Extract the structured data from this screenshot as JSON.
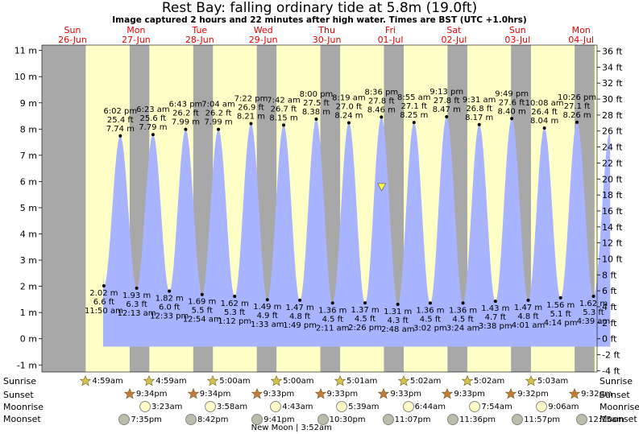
{
  "header": {
    "title": "Rest Bay: falling  ordinary tide at 5.8m (19.0ft)",
    "subtitle": "Image captured 2 hours and 22 minutes after high water. Times are BST (UTC +1.0hrs)"
  },
  "chart_data": {
    "type": "area",
    "title": "Rest Bay: falling  ordinary tide at 5.8m (19.0ft)",
    "ylabel_left_unit": "m",
    "ylabel_right_unit": "ft",
    "ylim_m": [
      -1.2,
      11.3
    ],
    "left_ticks": [
      "-1 m",
      "0 m",
      "1 m",
      "2 m",
      "3 m",
      "4 m",
      "5 m",
      "6 m",
      "7 m",
      "8 m",
      "9 m",
      "10 m",
      "11 m"
    ],
    "right_ticks": [
      "-4 ft",
      "-2 ft",
      "0 ft",
      "2 ft",
      "4 ft",
      "6 ft",
      "8 ft",
      "10 ft",
      "12 ft",
      "14 ft",
      "16 ft",
      "18 ft",
      "20 ft",
      "22 ft",
      "24 ft",
      "26 ft",
      "28 ft",
      "30 ft",
      "32 ft",
      "34 ft",
      "36 ft"
    ],
    "days": [
      {
        "dow": "Sun",
        "date": "26-Jun"
      },
      {
        "dow": "Mon",
        "date": "27-Jun"
      },
      {
        "dow": "Tue",
        "date": "28-Jun"
      },
      {
        "dow": "Wed",
        "date": "29-Jun"
      },
      {
        "dow": "Thu",
        "date": "30-Jun"
      },
      {
        "dow": "Fri",
        "date": "01-Jul"
      },
      {
        "dow": "Sat",
        "date": "02-Jul"
      },
      {
        "dow": "Sun",
        "date": "03-Jul"
      },
      {
        "dow": "Mon",
        "date": "04-Jul"
      }
    ],
    "extremes": [
      {
        "type": "low",
        "day": 0,
        "time": "11:50 am",
        "m": 2.02,
        "ft": "6.6 ft"
      },
      {
        "type": "high",
        "day": 0,
        "time": "6:02 pm",
        "m": 7.74,
        "ft": "25.4 ft"
      },
      {
        "type": "low",
        "day": 1,
        "time": "12:13 am",
        "m": 1.93,
        "ft": "6.3 ft"
      },
      {
        "type": "high",
        "day": 1,
        "time": "6:23 am",
        "m": 7.79,
        "ft": "25.6 ft"
      },
      {
        "type": "low",
        "day": 1,
        "time": "12:33 pm",
        "m": 1.82,
        "ft": "6.0 ft"
      },
      {
        "type": "high",
        "day": 1,
        "time": "6:43 pm",
        "m": 7.99,
        "ft": "26.2 ft"
      },
      {
        "type": "low",
        "day": 2,
        "time": "12:54 am",
        "m": 1.69,
        "ft": "5.5 ft"
      },
      {
        "type": "high",
        "day": 2,
        "time": "7:04 am",
        "m": 7.99,
        "ft": "26.2 ft"
      },
      {
        "type": "low",
        "day": 2,
        "time": "1:12 pm",
        "m": 1.62,
        "ft": "5.3 ft"
      },
      {
        "type": "high",
        "day": 2,
        "time": "7:22 pm",
        "m": 8.21,
        "ft": "26.9 ft"
      },
      {
        "type": "low",
        "day": 3,
        "time": "1:33 am",
        "m": 1.49,
        "ft": "4.9 ft"
      },
      {
        "type": "high",
        "day": 3,
        "time": "7:42 am",
        "m": 8.15,
        "ft": "26.7 ft"
      },
      {
        "type": "low",
        "day": 3,
        "time": "1:49 pm",
        "m": 1.47,
        "ft": "4.8 ft"
      },
      {
        "type": "high",
        "day": 3,
        "time": "8:00 pm",
        "m": 8.38,
        "ft": "27.5 ft"
      },
      {
        "type": "low",
        "day": 4,
        "time": "2:11 am",
        "m": 1.36,
        "ft": "4.5 ft"
      },
      {
        "type": "high",
        "day": 4,
        "time": "8:19 am",
        "m": 8.24,
        "ft": "27.0 ft"
      },
      {
        "type": "low",
        "day": 4,
        "time": "2:26 pm",
        "m": 1.37,
        "ft": "4.5 ft"
      },
      {
        "type": "high",
        "day": 4,
        "time": "8:36 pm",
        "m": 8.46,
        "ft": "27.8 ft"
      },
      {
        "type": "low",
        "day": 5,
        "time": "2:48 am",
        "m": 1.31,
        "ft": "4.3 ft"
      },
      {
        "type": "high",
        "day": 5,
        "time": "8:55 am",
        "m": 8.25,
        "ft": "27.1 ft"
      },
      {
        "type": "low",
        "day": 5,
        "time": "3:02 pm",
        "m": 1.36,
        "ft": "4.5 ft"
      },
      {
        "type": "high",
        "day": 5,
        "time": "9:13 pm",
        "m": 8.47,
        "ft": "27.8 ft"
      },
      {
        "type": "low",
        "day": 6,
        "time": "3:24 am",
        "m": 1.36,
        "ft": "4.5 ft"
      },
      {
        "type": "high",
        "day": 6,
        "time": "9:31 am",
        "m": 8.17,
        "ft": "26.8 ft"
      },
      {
        "type": "low",
        "day": 6,
        "time": "3:38 pm",
        "m": 1.43,
        "ft": "4.7 ft"
      },
      {
        "type": "high",
        "day": 6,
        "time": "9:49 pm",
        "m": 8.4,
        "ft": "27.6 ft"
      },
      {
        "type": "low",
        "day": 7,
        "time": "4:01 am",
        "m": 1.47,
        "ft": "4.8 ft"
      },
      {
        "type": "high",
        "day": 7,
        "time": "10:08 am",
        "m": 8.04,
        "ft": "26.4 ft"
      },
      {
        "type": "low",
        "day": 7,
        "time": "4:14 pm",
        "m": 1.56,
        "ft": "5.1 ft"
      },
      {
        "type": "high",
        "day": 7,
        "time": "10:26 pm",
        "m": 8.26,
        "ft": "27.1 ft"
      },
      {
        "type": "low",
        "day": 8,
        "time": "4:39 am",
        "m": 1.62,
        "ft": "5.3 ft"
      }
    ],
    "current": {
      "m": 5.8,
      "ft": "19.0ft",
      "time_hours_from_start": 116.7
    },
    "sunrise": [
      "4:59am",
      "4:59am",
      "5:00am",
      "5:00am",
      "5:01am",
      "5:02am",
      "5:02am",
      "5:03am"
    ],
    "sunset": [
      "9:34pm",
      "9:34pm",
      "9:33pm",
      "9:33pm",
      "9:33pm",
      "9:33pm",
      "9:32pm",
      "9:32pm"
    ],
    "moonrise": [
      "3:23am",
      "3:58am",
      "4:43am",
      "5:39am",
      "6:44am",
      "7:54am",
      "9:06am"
    ],
    "moonset": [
      "7:35pm",
      "8:42pm",
      "9:41pm",
      "10:30pm",
      "11:07pm",
      "11:36pm",
      "11:57pm",
      "12:15am"
    ],
    "moon_phase_note": "New Moon | 3:52am",
    "colors": {
      "water": "#a8b4ff",
      "day": "#ffffc8",
      "night": "#a8a8a8",
      "day_label": "#e60000",
      "marker": "#ffff44"
    }
  },
  "astro_labels": {
    "sunrise": "Sunrise",
    "sunset": "Sunset",
    "moonrise": "Moonrise",
    "moonset": "Moonset"
  }
}
